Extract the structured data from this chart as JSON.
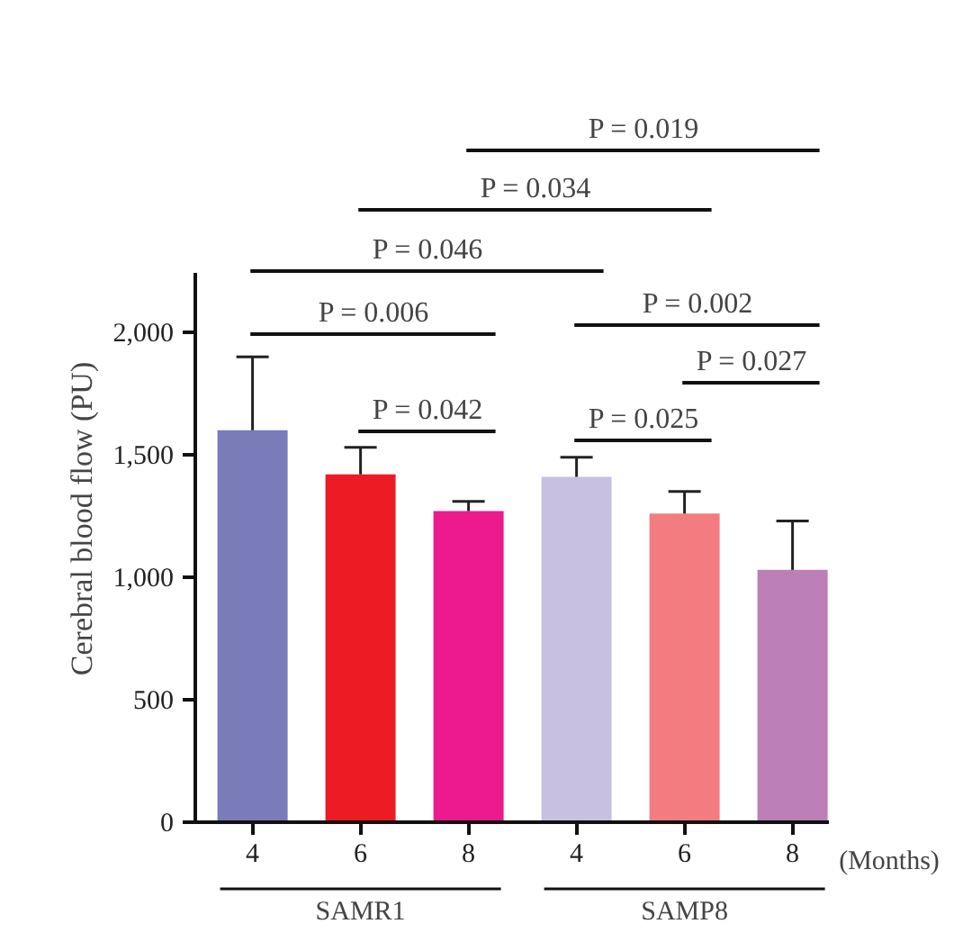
{
  "chart_data": {
    "type": "bar",
    "categories": [
      "4",
      "6",
      "8",
      "4",
      "6",
      "8"
    ],
    "values": [
      1600,
      1420,
      1270,
      1410,
      1260,
      1030
    ],
    "colors": [
      "#7a7bb9",
      "#ed1c24",
      "#ec1a8c",
      "#c8c0e0",
      "#f27c80",
      "#bc7fb8"
    ],
    "errors": [
      [
        1600,
        1900
      ],
      [
        1420,
        1530
      ],
      [
        1270,
        1310
      ],
      [
        1410,
        1490
      ],
      [
        1260,
        1350
      ],
      [
        1030,
        1230
      ]
    ],
    "ylim": [
      0,
      2240
    ],
    "yticks": [
      0,
      500,
      {
        "value": 1000,
        "label": "1,000"
      },
      {
        "value": 1500,
        "label": "1,500"
      },
      {
        "value": 2000,
        "label": "2,000"
      }
    ],
    "ylabel": "Cerebral blood flow (PU)",
    "xlabel": "(Months)",
    "annotations": [
      "P = 0.019",
      "P = 0.034",
      "P = 0.046",
      "P = 0.006",
      "P = 0.002",
      "P = 0.027",
      "P = 0.042",
      "P = 0.025",
      "SAMR1",
      "SAMP8"
    ],
    "grid": false
  }
}
